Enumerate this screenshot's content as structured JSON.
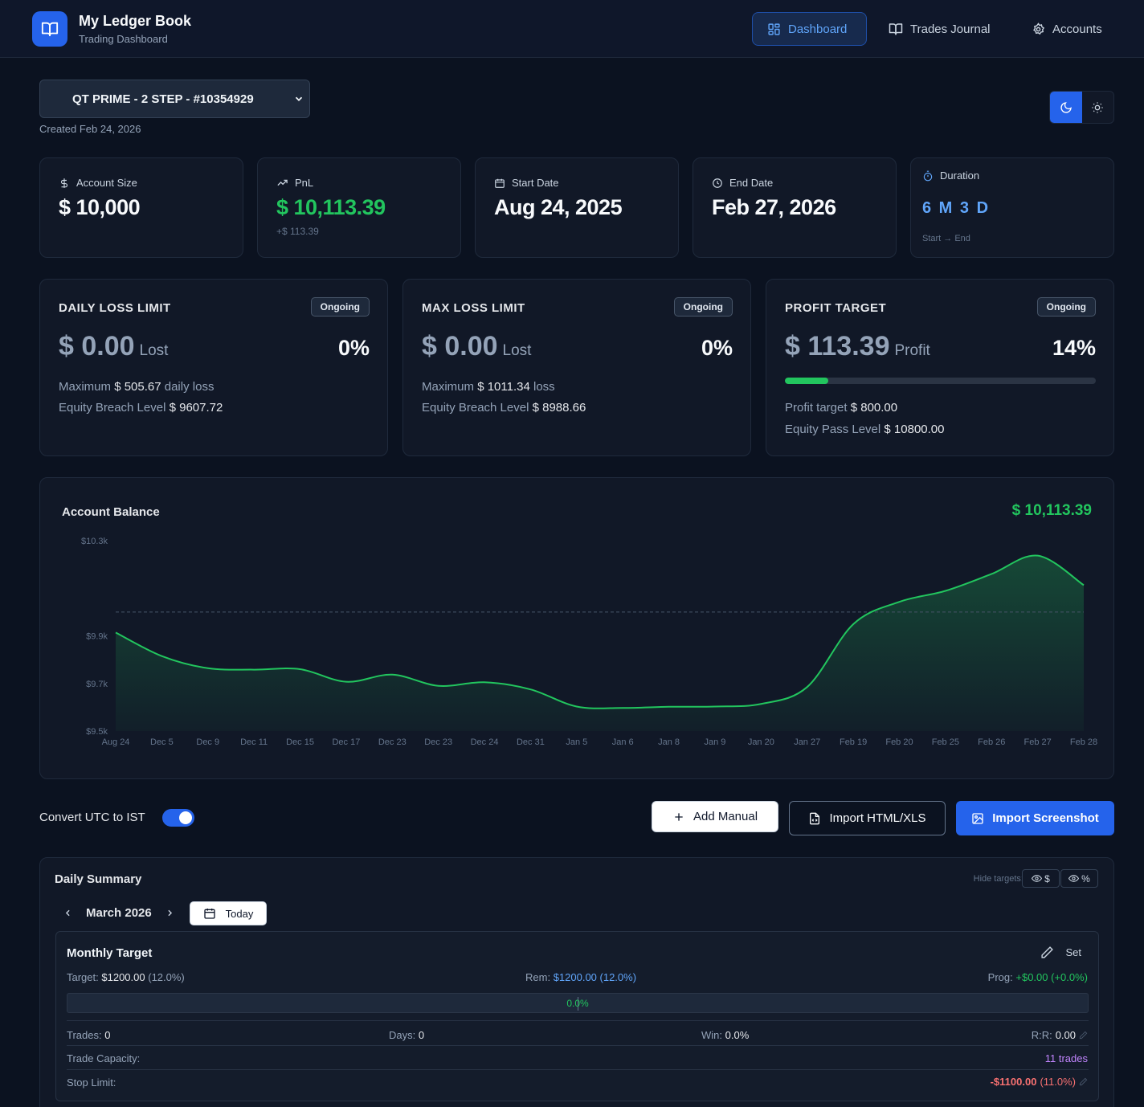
{
  "app": {
    "title": "My Ledger Book",
    "subtitle": "Trading Dashboard"
  },
  "nav": [
    {
      "label": "Dashboard",
      "icon": "grid-icon",
      "active": true
    },
    {
      "label": "Trades Journal",
      "icon": "book-icon",
      "active": false
    },
    {
      "label": "Accounts",
      "icon": "gear-icon",
      "active": false
    }
  ],
  "account": {
    "selected": "QT PRIME - 2 STEP - #10354929",
    "created": "Created Feb 24, 2026"
  },
  "theme": {
    "active": "dark"
  },
  "stats": [
    {
      "label": "Account Size",
      "value": "$ 10,000",
      "sub": ""
    },
    {
      "label": "PnL",
      "value": "$ 10,113.39",
      "sub": "+$ 113.39"
    },
    {
      "label": "Start Date",
      "value": "Aug 24, 2025",
      "sub": ""
    },
    {
      "label": "End Date",
      "value": "Feb 27, 2026",
      "sub": ""
    },
    {
      "label": "Duration",
      "value": "6 M 3 D",
      "sub": "Start → End"
    }
  ],
  "limits": {
    "daily": {
      "title": "DAILY LOSS LIMIT",
      "status": "Ongoing",
      "amount": "$ 0.00",
      "suffix": "Lost",
      "pct": "0%",
      "line1_label": "Maximum",
      "line1_value": "$ 505.67",
      "line1_suffix": "daily loss",
      "line2_label": "Equity Breach Level",
      "line2_value": "$ 9607.72"
    },
    "max": {
      "title": "MAX LOSS LIMIT",
      "status": "Ongoing",
      "amount": "$ 0.00",
      "suffix": "Lost",
      "pct": "0%",
      "line1_label": "Maximum",
      "line1_value": "$ 1011.34",
      "line1_suffix": "loss",
      "line2_label": "Equity Breach Level",
      "line2_value": "$ 8988.66"
    },
    "profit": {
      "title": "PROFIT TARGET",
      "status": "Ongoing",
      "amount": "$ 113.39",
      "suffix": "Profit",
      "pct": "14%",
      "progress": 0.14,
      "line1_label": "Profit target",
      "line1_value": "$ 800.00",
      "line2_label": "Equity Pass Level",
      "line2_value": "$ 10800.00"
    }
  },
  "chart_data": {
    "type": "area",
    "title": "Account Balance",
    "current_value": "$ 10,113.39",
    "x": [
      "Aug 24",
      "Dec 5",
      "Dec 9",
      "Dec 11",
      "Dec 15",
      "Dec 17",
      "Dec 23",
      "Dec 23",
      "Dec 24",
      "Dec 31",
      "Jan 5",
      "Jan 6",
      "Jan 8",
      "Jan 9",
      "Jan 20",
      "Jan 27",
      "Feb 19",
      "Feb 20",
      "Feb 25",
      "Feb 26",
      "Feb 27",
      "Feb 28"
    ],
    "values": [
      9914,
      9815,
      9764,
      9758,
      9760,
      9707,
      9737,
      9690,
      9705,
      9675,
      9603,
      9597,
      9602,
      9603,
      9614,
      9685,
      9949,
      10043,
      10089,
      10160,
      10237,
      10113
    ],
    "y_ticks": [
      "$10.3k",
      "$9.9k",
      "$9.7k",
      "$9.5k"
    ],
    "ylim": [
      9500,
      10300
    ],
    "reference_line": 10000,
    "grid": false
  },
  "actions": {
    "convert_label": "Convert UTC to IST",
    "convert_on": true,
    "add_manual": "Add Manual",
    "import_html": "Import HTML/XLS",
    "import_screenshot": "Import Screenshot"
  },
  "summary": {
    "title": "Daily Summary",
    "hide_targets": "Hide targets:",
    "hide_dollar": "$",
    "hide_pct": "%",
    "month": "March 2026",
    "today": "Today",
    "monthly": {
      "title": "Monthly Target",
      "set": "Set",
      "target_label": "Target:",
      "target_value": "$1200.00",
      "target_pct": "(12.0%)",
      "rem_label": "Rem:",
      "rem_value": "$1200.00 (12.0%)",
      "prog_label": "Prog:",
      "prog_value": "+$0.00 (+0.0%)",
      "bar_label": "0.0%",
      "trades_label": "Trades:",
      "trades_value": "0",
      "days_label": "Days:",
      "days_value": "0",
      "win_label": "Win:",
      "win_value": "0.0%",
      "rr_label": "R:R:",
      "rr_value": "0.00",
      "capacity_label": "Trade Capacity:",
      "capacity_value": "11 trades",
      "stop_label": "Stop Limit:",
      "stop_value": "-$1100.00",
      "stop_pct": "(11.0%)"
    }
  },
  "colors": {
    "accent": "#2563eb",
    "positive": "#22c55e",
    "negative": "#f87171",
    "capacity": "#c084fc",
    "background": "#0b1220"
  }
}
